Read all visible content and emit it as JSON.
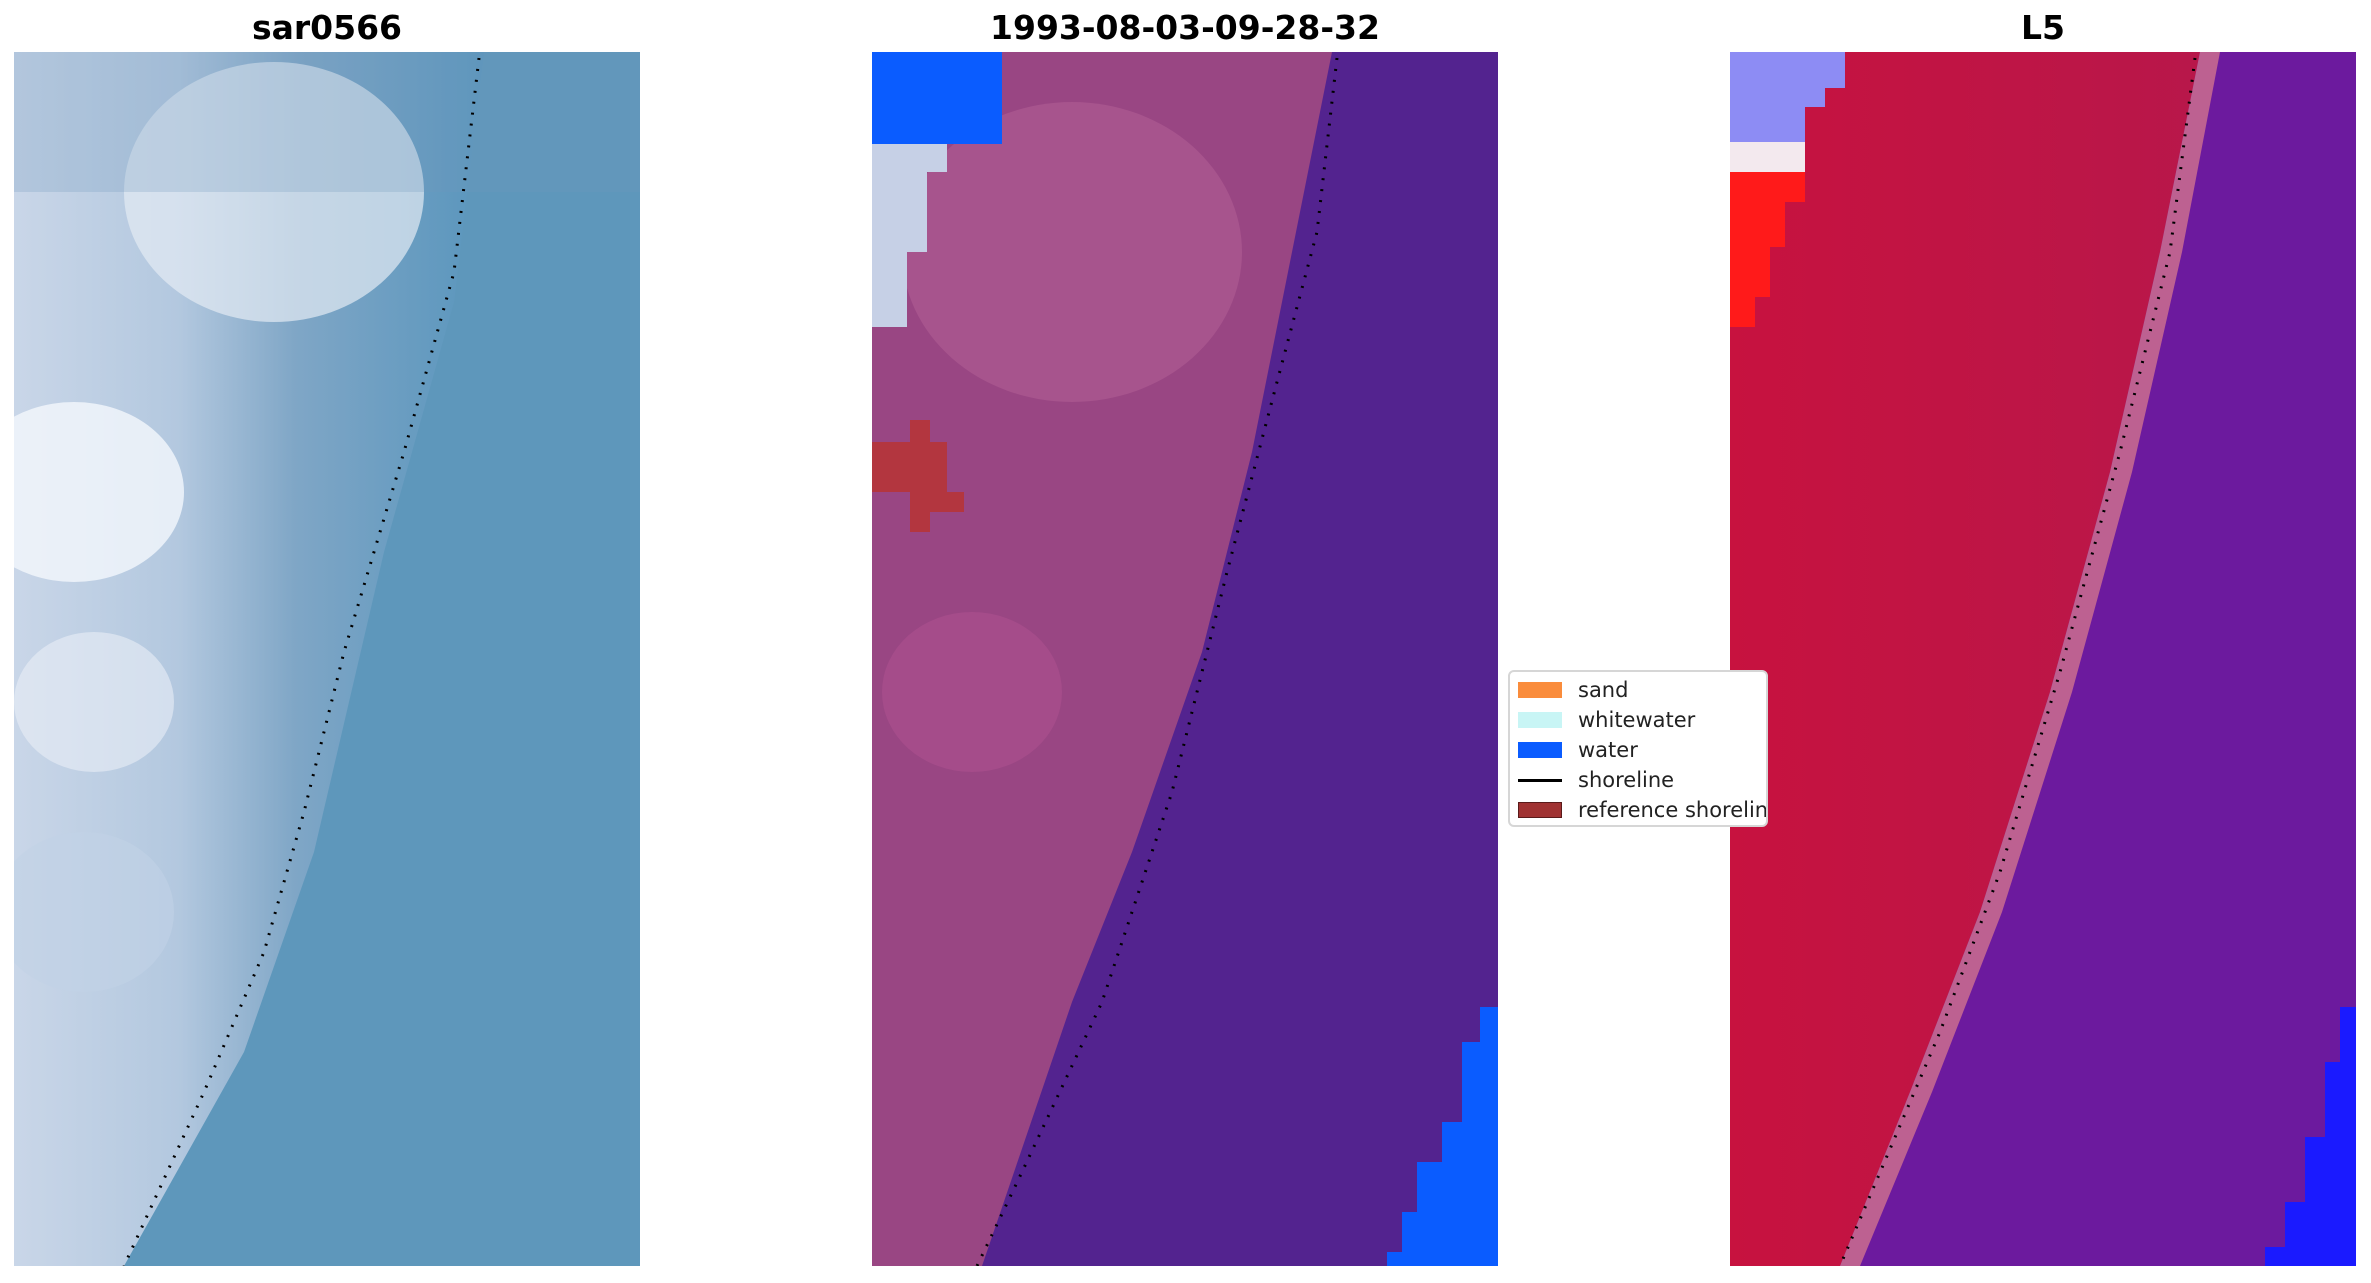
{
  "panels": [
    {
      "title": "sar0566"
    },
    {
      "title": "1993-08-03-09-28-32"
    },
    {
      "title": "L5"
    }
  ],
  "legend": {
    "items": [
      {
        "label": "sand",
        "color": "#fa8c3c"
      },
      {
        "label": "whitewater",
        "color": "#c8f5f5"
      },
      {
        "label": "water",
        "color": "#0a5cff"
      },
      {
        "label": "shoreline",
        "color": "#000000"
      },
      {
        "label": "reference shoreline",
        "color": "#a03232"
      }
    ]
  },
  "colors": {
    "beach_rgb": "#a9c1d9",
    "ocean_rgb": "#5e97bb",
    "sand_class": "#9c4a82",
    "water_class": "#52248f",
    "water_mask": "#0a5cff",
    "reference_shoreline": "#b23a3a",
    "index_positive": "#c4123f",
    "index_negative": "#6e1aa3",
    "shoreline": "#000000"
  }
}
